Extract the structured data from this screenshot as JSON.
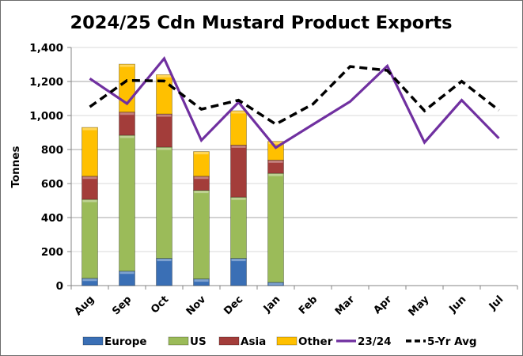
{
  "chart_data": {
    "type": "bar",
    "subtype": "stacked bar with line overlays",
    "title": "2024/25 Cdn Mustard Product Exports",
    "xlabel": "",
    "ylabel": "Tonnes",
    "ylim": [
      0,
      1400
    ],
    "yticks": [
      0,
      200,
      400,
      600,
      800,
      1000,
      1200,
      1400
    ],
    "ytick_labels": [
      "0",
      "200",
      "400",
      "600",
      "800",
      "1,000",
      "1,200",
      "1,400"
    ],
    "grid": true,
    "legend_position": "bottom",
    "categories": [
      "Aug",
      "Sep",
      "Oct",
      "Nov",
      "Dec",
      "Jan",
      "Feb",
      "Mar",
      "Apr",
      "May",
      "Jun",
      "Jul"
    ],
    "series": [
      {
        "name": "Europe",
        "kind": "bar",
        "color": "#3a6fb5",
        "values": [
          43,
          85,
          160,
          39,
          160,
          19,
          null,
          null,
          null,
          null,
          null,
          null
        ]
      },
      {
        "name": "US",
        "kind": "bar",
        "color": "#9bbb59",
        "values": [
          464,
          799,
          654,
          521,
          360,
          641,
          null,
          null,
          null,
          null,
          null,
          null
        ]
      },
      {
        "name": "Asia",
        "kind": "bar",
        "color": "#a33d3a",
        "values": [
          136,
          136,
          195,
          83,
          306,
          78,
          null,
          null,
          null,
          null,
          null,
          null
        ]
      },
      {
        "name": "Other",
        "kind": "bar",
        "color": "#ffc000",
        "values": [
          287,
          282,
          231,
          145,
          202,
          110,
          null,
          null,
          null,
          null,
          null,
          null
        ]
      },
      {
        "name": "23/24",
        "kind": "line",
        "style": "solid",
        "color": "#7030a0",
        "values": [
          1217,
          1070,
          1335,
          854,
          1078,
          811,
          947,
          1082,
          1291,
          842,
          1090,
          866
        ]
      },
      {
        "name": "5-Yr Avg",
        "kind": "line",
        "style": "dashed",
        "color": "#000000",
        "values": [
          1051,
          1206,
          1203,
          1037,
          1090,
          949,
          1067,
          1288,
          1265,
          1028,
          1201,
          1031
        ]
      }
    ]
  }
}
